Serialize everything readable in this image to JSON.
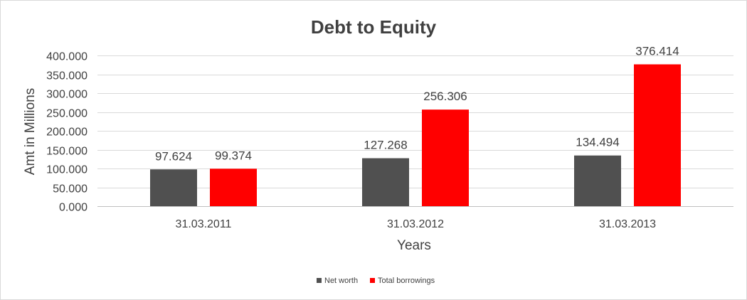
{
  "chart_data": {
    "type": "bar",
    "title": "Debt to Equity",
    "xlabel": "Years",
    "ylabel": "Amt in Millions",
    "categories": [
      "31.03.2011",
      "31.03.2012",
      "31.03.2013"
    ],
    "series": [
      {
        "name": "Net worth",
        "values": [
          97.624,
          127.268,
          134.494
        ],
        "color": "#505050"
      },
      {
        "name": "Total borrowings",
        "values": [
          99.374,
          256.306,
          376.414
        ],
        "color": "#ff0000"
      }
    ],
    "ylim": [
      0,
      400
    ],
    "yticks": [
      0,
      50,
      100,
      150,
      200,
      250,
      300,
      350,
      400
    ],
    "ytick_labels": [
      "0.000",
      "50.000",
      "100.000",
      "150.000",
      "200.000",
      "250.000",
      "300.000",
      "350.000",
      "400.000"
    ],
    "data_labels": [
      [
        "97.624",
        "127.268",
        "134.494"
      ],
      [
        "99.374",
        "256.306",
        "376.414"
      ]
    ],
    "grid": true,
    "legend_position": "bottom"
  }
}
